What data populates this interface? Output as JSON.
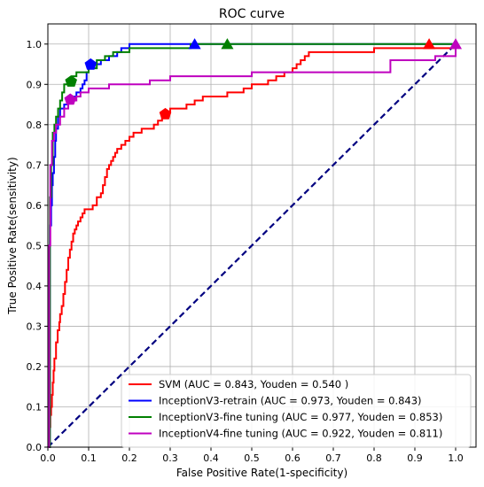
{
  "chart_data": {
    "type": "line",
    "title": "ROC curve",
    "xlabel": "False Positive Rate(1-specificity)",
    "ylabel": "True Positive Rate(sensitivity)",
    "xlim": [
      0.0,
      1.05
    ],
    "ylim": [
      0.0,
      1.05
    ],
    "xticks": [
      "0.0",
      "0.1",
      "0.2",
      "0.3",
      "0.4",
      "0.5",
      "0.6",
      "0.7",
      "0.8",
      "0.9",
      "1.0"
    ],
    "yticks": [
      "0.0",
      "0.1",
      "0.2",
      "0.3",
      "0.4",
      "0.5",
      "0.6",
      "0.7",
      "0.8",
      "0.9",
      "1.0"
    ],
    "grid": true,
    "legend_position": "lower-right",
    "diagonal": {
      "x": [
        0,
        1
      ],
      "y": [
        0,
        1
      ],
      "color": "#000080",
      "style": "dashed"
    },
    "series": [
      {
        "name": "SVM (AUC = 0.843, Youden = 0.540 )",
        "color": "#ff0000",
        "x": [
          0.0,
          0.002,
          0.004,
          0.006,
          0.008,
          0.01,
          0.012,
          0.014,
          0.016,
          0.02,
          0.024,
          0.028,
          0.03,
          0.034,
          0.038,
          0.042,
          0.046,
          0.05,
          0.054,
          0.058,
          0.062,
          0.066,
          0.07,
          0.074,
          0.08,
          0.085,
          0.09,
          0.1,
          0.11,
          0.12,
          0.13,
          0.135,
          0.14,
          0.145,
          0.15,
          0.155,
          0.16,
          0.165,
          0.17,
          0.18,
          0.19,
          0.2,
          0.21,
          0.22,
          0.23,
          0.24,
          0.25,
          0.26,
          0.27,
          0.28,
          0.29,
          0.3,
          0.32,
          0.34,
          0.36,
          0.38,
          0.4,
          0.42,
          0.44,
          0.46,
          0.48,
          0.5,
          0.52,
          0.54,
          0.56,
          0.58,
          0.6,
          0.61,
          0.62,
          0.63,
          0.64,
          0.66,
          0.7,
          0.75,
          0.8,
          0.85,
          0.9,
          0.94,
          0.96,
          1.0
        ],
        "y": [
          0.0,
          0.02,
          0.05,
          0.08,
          0.1,
          0.13,
          0.16,
          0.19,
          0.22,
          0.26,
          0.29,
          0.31,
          0.33,
          0.35,
          0.38,
          0.41,
          0.44,
          0.47,
          0.49,
          0.51,
          0.53,
          0.54,
          0.55,
          0.56,
          0.57,
          0.58,
          0.59,
          0.59,
          0.6,
          0.62,
          0.63,
          0.65,
          0.67,
          0.69,
          0.7,
          0.71,
          0.72,
          0.73,
          0.74,
          0.75,
          0.76,
          0.77,
          0.78,
          0.78,
          0.79,
          0.79,
          0.79,
          0.8,
          0.81,
          0.82,
          0.83,
          0.84,
          0.84,
          0.85,
          0.86,
          0.87,
          0.87,
          0.87,
          0.88,
          0.88,
          0.89,
          0.9,
          0.9,
          0.91,
          0.92,
          0.93,
          0.94,
          0.95,
          0.96,
          0.97,
          0.98,
          0.98,
          0.98,
          0.98,
          0.99,
          0.99,
          0.99,
          0.99,
          0.99,
          1.0
        ],
        "marker": {
          "shape": "pentagon",
          "x": 0.288,
          "y": 0.826
        },
        "marker_end": {
          "shape": "triangle",
          "x": 0.935,
          "y": 0.998
        }
      },
      {
        "name": "InceptionV3-retrain (AUC = 0.973, Youden = 0.843)",
        "color": "#0000ff",
        "x": [
          0.0,
          0.005,
          0.008,
          0.01,
          0.012,
          0.015,
          0.018,
          0.02,
          0.025,
          0.03,
          0.04,
          0.05,
          0.06,
          0.07,
          0.08,
          0.085,
          0.09,
          0.095,
          0.1,
          0.105,
          0.11,
          0.12,
          0.13,
          0.14,
          0.15,
          0.16,
          0.17,
          0.18,
          0.2,
          0.25,
          0.3,
          0.35,
          0.36,
          0.4,
          0.5,
          0.6,
          0.7,
          0.8,
          0.9,
          1.0
        ],
        "y": [
          0.0,
          0.55,
          0.6,
          0.65,
          0.68,
          0.72,
          0.76,
          0.79,
          0.82,
          0.84,
          0.85,
          0.86,
          0.87,
          0.88,
          0.89,
          0.9,
          0.91,
          0.93,
          0.94,
          0.95,
          0.95,
          0.95,
          0.96,
          0.96,
          0.97,
          0.97,
          0.98,
          0.99,
          1.0,
          1.0,
          1.0,
          1.0,
          1.0,
          1.0,
          1.0,
          1.0,
          1.0,
          1.0,
          1.0,
          1.0
        ],
        "marker": {
          "shape": "pentagon",
          "x": 0.105,
          "y": 0.949
        },
        "marker_end": {
          "shape": "triangle",
          "x": 0.36,
          "y": 0.998
        }
      },
      {
        "name": "InceptionV3-fine tuning (AUC = 0.977, Youden = 0.853)",
        "color": "#008000",
        "x": [
          0.0,
          0.005,
          0.008,
          0.012,
          0.016,
          0.02,
          0.025,
          0.03,
          0.035,
          0.04,
          0.05,
          0.06,
          0.07,
          0.08,
          0.1,
          0.12,
          0.14,
          0.16,
          0.18,
          0.2,
          0.22,
          0.25,
          0.3,
          0.35,
          0.4,
          0.44,
          0.5,
          0.6,
          0.7,
          0.8,
          0.9,
          1.0
        ],
        "y": [
          0.0,
          0.62,
          0.7,
          0.78,
          0.8,
          0.82,
          0.84,
          0.86,
          0.88,
          0.9,
          0.91,
          0.92,
          0.93,
          0.93,
          0.94,
          0.96,
          0.97,
          0.98,
          0.98,
          0.99,
          0.99,
          0.99,
          0.99,
          1.0,
          1.0,
          1.0,
          1.0,
          1.0,
          1.0,
          1.0,
          1.0,
          1.0
        ],
        "marker": {
          "shape": "pentagon",
          "x": 0.057,
          "y": 0.907
        },
        "marker_end": {
          "shape": "triangle",
          "x": 0.44,
          "y": 0.998
        }
      },
      {
        "name": "InceptionV4-fine tuning (AUC = 0.922, Youden = 0.811)",
        "color": "#bf00bf",
        "x": [
          0.0,
          0.003,
          0.006,
          0.01,
          0.015,
          0.02,
          0.03,
          0.04,
          0.05,
          0.06,
          0.07,
          0.08,
          0.1,
          0.12,
          0.15,
          0.2,
          0.25,
          0.3,
          0.35,
          0.4,
          0.5,
          0.6,
          0.7,
          0.75,
          0.78,
          0.8,
          0.82,
          0.84,
          0.86,
          0.9,
          0.95,
          1.0
        ],
        "y": [
          0.0,
          0.5,
          0.7,
          0.76,
          0.78,
          0.8,
          0.82,
          0.84,
          0.86,
          0.86,
          0.87,
          0.88,
          0.89,
          0.89,
          0.9,
          0.9,
          0.91,
          0.92,
          0.92,
          0.92,
          0.93,
          0.93,
          0.93,
          0.93,
          0.93,
          0.93,
          0.93,
          0.96,
          0.96,
          0.96,
          0.97,
          1.0
        ],
        "marker": {
          "shape": "pentagon",
          "x": 0.055,
          "y": 0.862
        },
        "marker_end": {
          "shape": "triangle",
          "x": 1.0,
          "y": 0.998
        }
      }
    ]
  }
}
